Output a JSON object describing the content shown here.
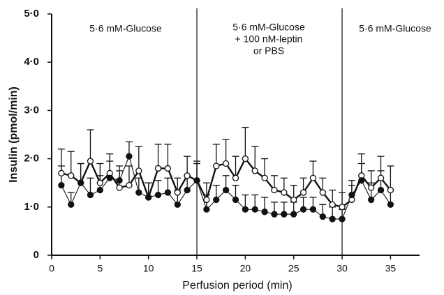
{
  "chart_data": {
    "type": "line",
    "xlabel": "Perfusion period (min)",
    "ylabel": "Insulin (pmol/min)",
    "annotations": [
      {
        "lines": [
          "5·6 mM-Glucose"
        ]
      },
      {
        "lines": [
          "5·6 mM-Glucose",
          "+ 100 nM-leptin",
          "or PBS"
        ]
      },
      {
        "lines": [
          "5·6 mM-Glucose"
        ]
      }
    ],
    "vlines": [
      15,
      30
    ],
    "x": [
      1,
      2,
      3,
      4,
      5,
      6,
      7,
      8,
      9,
      10,
      11,
      12,
      13,
      14,
      15,
      16,
      17,
      18,
      19,
      20,
      21,
      22,
      23,
      24,
      25,
      26,
      27,
      28,
      29,
      30,
      31,
      32,
      33,
      34,
      35
    ],
    "series": [
      {
        "color": "#111111",
        "marker": "open",
        "values": [
          1.7,
          1.65,
          1.5,
          1.95,
          1.5,
          1.7,
          1.4,
          1.45,
          1.75,
          1.2,
          1.8,
          1.8,
          1.3,
          1.65,
          1.55,
          1.15,
          1.85,
          1.9,
          1.6,
          2.0,
          1.75,
          1.6,
          1.35,
          1.3,
          1.15,
          1.3,
          1.6,
          1.3,
          1.05,
          1.0,
          1.15,
          1.65,
          1.4,
          1.6,
          1.35
        ],
        "errors": [
          0.5,
          0.5,
          0.4,
          0.65,
          0.4,
          0.4,
          0.35,
          0.4,
          0.5,
          0.3,
          0.5,
          0.5,
          0.3,
          0.4,
          0.4,
          0.35,
          0.45,
          0.5,
          0.45,
          0.65,
          0.5,
          0.4,
          0.3,
          0.3,
          0.3,
          0.3,
          0.35,
          0.3,
          0.3,
          0.3,
          0.3,
          0.45,
          0.35,
          0.45,
          0.5
        ]
      },
      {
        "color": "#111111",
        "marker": "filled",
        "values": [
          1.45,
          1.05,
          1.5,
          1.25,
          1.35,
          1.6,
          1.55,
          2.05,
          1.3,
          1.2,
          1.25,
          1.3,
          1.05,
          1.35,
          1.55,
          0.95,
          1.15,
          1.35,
          1.15,
          0.95,
          0.95,
          0.9,
          0.85,
          0.85,
          0.85,
          0.95,
          0.95,
          0.8,
          0.75,
          0.75,
          1.25,
          1.55,
          1.15,
          1.35,
          1.05
        ],
        "errors": [
          0.4,
          0.25,
          0.4,
          0.35,
          0.3,
          0.35,
          0.3,
          0.3,
          0.3,
          0.3,
          0.3,
          0.3,
          0.3,
          0.3,
          0.35,
          0.3,
          0.3,
          0.3,
          0.3,
          0.3,
          0.3,
          0.3,
          0.25,
          0.25,
          0.25,
          0.25,
          0.25,
          0.25,
          0.25,
          0.2,
          0.3,
          0.35,
          0.35,
          0.4,
          0.3
        ]
      }
    ],
    "xlim": [
      0,
      38
    ],
    "xticks": [
      0,
      5,
      10,
      15,
      20,
      25,
      30,
      35
    ],
    "ylim": [
      0,
      5
    ],
    "yticks": [
      0,
      {
        "value": 1,
        "label": "1·0"
      },
      {
        "value": 2,
        "label": "2·0"
      },
      {
        "value": 3,
        "label": "3·0"
      },
      {
        "value": 4,
        "label": "4·0"
      },
      {
        "value": 5,
        "label": "5·0"
      }
    ]
  }
}
